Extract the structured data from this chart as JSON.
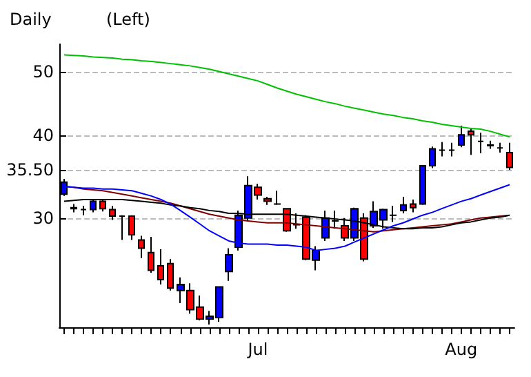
{
  "chart_data": {
    "type": "candlestick",
    "title": "Daily",
    "subtitle": "(Left)",
    "categories": [
      null,
      null,
      null,
      null,
      null,
      null,
      null,
      null,
      null,
      null,
      null,
      null,
      null,
      null,
      null,
      null,
      null,
      null,
      null,
      null,
      "Jul",
      null,
      null,
      null,
      null,
      null,
      null,
      null,
      null,
      null,
      null,
      null,
      null,
      null,
      null,
      null,
      null,
      null,
      null,
      null,
      null,
      "Aug",
      null,
      null,
      null,
      null,
      null
    ],
    "ohlc": [
      [
        32.6,
        34.4,
        32.4,
        34.0
      ],
      [
        31.0,
        31.5,
        30.6,
        31.1
      ],
      [
        30.9,
        31.3,
        30.3,
        30.9
      ],
      [
        30.9,
        32.0,
        30.6,
        31.8
      ],
      [
        31.8,
        32.0,
        30.7,
        31.0
      ],
      [
        30.9,
        31.3,
        29.8,
        30.2
      ],
      [
        30.2,
        30.3,
        27.8,
        30.2
      ],
      [
        30.2,
        30.3,
        27.8,
        28.3
      ],
      [
        27.8,
        28.2,
        26.1,
        27.0
      ],
      [
        26.6,
        28.1,
        24.8,
        25.0
      ],
      [
        25.4,
        26.9,
        23.8,
        24.2
      ],
      [
        25.6,
        26.0,
        23.3,
        23.5
      ],
      [
        23.3,
        24.4,
        22.3,
        23.8
      ],
      [
        23.3,
        23.9,
        21.5,
        21.8
      ],
      [
        22.0,
        22.9,
        21.0,
        21.1
      ],
      [
        21.1,
        21.7,
        20.7,
        21.3
      ],
      [
        21.2,
        23.6,
        20.9,
        23.6
      ],
      [
        24.9,
        27.0,
        24.1,
        26.4
      ],
      [
        27.1,
        30.8,
        26.8,
        30.3
      ],
      [
        30.0,
        34.7,
        29.7,
        33.6
      ],
      [
        33.4,
        33.8,
        32.0,
        32.5
      ],
      [
        32.1,
        32.3,
        31.4,
        31.8
      ],
      [
        31.5,
        33.0,
        31.4,
        31.5
      ],
      [
        31.0,
        31.0,
        28.6,
        28.7
      ],
      [
        29.3,
        30.5,
        28.9,
        29.3
      ],
      [
        30.1,
        30.3,
        25.9,
        26.0
      ],
      [
        25.9,
        27.2,
        25.0,
        26.8
      ],
      [
        28.0,
        30.8,
        27.7,
        30.0
      ],
      [
        29.7,
        30.8,
        28.9,
        29.7
      ],
      [
        29.2,
        30.0,
        27.7,
        28.0
      ],
      [
        28.0,
        31.1,
        27.7,
        31.0
      ],
      [
        30.0,
        30.5,
        25.8,
        26.0
      ],
      [
        29.2,
        31.8,
        29.0,
        30.7
      ],
      [
        29.8,
        31.0,
        28.9,
        30.9
      ],
      [
        30.3,
        31.3,
        29.6,
        30.3
      ],
      [
        30.8,
        32.3,
        30.5,
        31.4
      ],
      [
        31.5,
        32.0,
        30.6,
        31.1
      ],
      [
        31.5,
        36.0,
        31.4,
        36.0
      ],
      [
        36.0,
        38.5,
        35.7,
        38.2
      ],
      [
        38.0,
        39.1,
        37.2,
        38.0
      ],
      [
        38.0,
        39.0,
        37.2,
        38.0
      ],
      [
        38.7,
        41.4,
        38.4,
        40.1
      ],
      [
        40.6,
        41.1,
        37.4,
        40.1
      ],
      [
        39.2,
        40.4,
        37.6,
        39.2
      ],
      [
        38.6,
        39.3,
        38.2,
        38.7
      ],
      [
        38.3,
        39.0,
        37.7,
        38.3
      ],
      [
        37.7,
        39.0,
        35.5,
        35.8
      ]
    ],
    "colors": [
      "#0000ff",
      "#0000ff",
      "#000000",
      "#0000ff",
      "#ff0000",
      "#ff0000",
      "#000000",
      "#ff0000",
      "#ff0000",
      "#ff0000",
      "#ff0000",
      "#ff0000",
      "#0000ff",
      "#ff0000",
      "#ff0000",
      "#0000ff",
      "#0000ff",
      "#0000ff",
      "#0000ff",
      "#0000ff",
      "#ff0000",
      "#ff0000",
      "#000000",
      "#ff0000",
      "#000000",
      "#ff0000",
      "#0000ff",
      "#0000ff",
      "#000000",
      "#ff0000",
      "#0000ff",
      "#ff0000",
      "#0000ff",
      "#0000ff",
      "#000000",
      "#0000ff",
      "#ff0000",
      "#0000ff",
      "#0000ff",
      "#000000",
      "#000000",
      "#0000ff",
      "#ff0000",
      "#000000",
      "#0000ff",
      "#000000",
      "#ff0000"
    ],
    "series": [
      {
        "type": "line",
        "color": "#00c000",
        "values": [
          53.0,
          52.9,
          52.8,
          52.6,
          52.5,
          52.4,
          52.2,
          52.1,
          51.9,
          51.8,
          51.6,
          51.4,
          51.2,
          51.0,
          50.7,
          50.4,
          50.0,
          49.6,
          49.2,
          48.8,
          48.4,
          47.8,
          47.2,
          46.7,
          46.2,
          45.8,
          45.4,
          45.0,
          44.7,
          44.3,
          44.0,
          43.7,
          43.4,
          43.1,
          42.9,
          42.6,
          42.4,
          42.1,
          41.9,
          41.6,
          41.4,
          41.2,
          41.0,
          40.9,
          40.6,
          40.2,
          39.8
        ]
      },
      {
        "type": "line",
        "color": "#0000ff",
        "values": [
          33.5,
          33.4,
          33.3,
          33.3,
          33.2,
          33.2,
          33.1,
          33.0,
          32.7,
          32.4,
          32.0,
          31.5,
          30.8,
          30.1,
          29.4,
          28.7,
          28.2,
          27.7,
          27.5,
          27.4,
          27.4,
          27.4,
          27.3,
          27.3,
          27.2,
          27.1,
          26.8,
          26.9,
          27.0,
          27.2,
          27.6,
          28.0,
          28.4,
          28.8,
          29.2,
          29.5,
          29.9,
          30.3,
          30.6,
          31.0,
          31.4,
          31.8,
          32.1,
          32.5,
          32.9,
          33.3,
          33.7
        ]
      },
      {
        "type": "line",
        "color": "#000000",
        "values": [
          31.8,
          31.9,
          32.0,
          32.0,
          32.0,
          32.0,
          32.0,
          31.9,
          31.8,
          31.7,
          31.6,
          31.4,
          31.3,
          31.1,
          31.0,
          30.8,
          30.7,
          30.5,
          30.5,
          30.4,
          30.4,
          30.4,
          30.4,
          30.4,
          30.3,
          30.2,
          30.1,
          30.0,
          29.9,
          29.8,
          29.7,
          29.5,
          29.3,
          29.1,
          29.0,
          28.9,
          28.9,
          29.0,
          29.0,
          29.1,
          29.3,
          29.5,
          29.6,
          29.8,
          30.0,
          30.1,
          30.3
        ]
      },
      {
        "type": "line",
        "color": "#800000",
        "values": [
          33.5,
          33.4,
          33.2,
          33.1,
          33.0,
          32.8,
          32.6,
          32.4,
          32.2,
          32.0,
          31.8,
          31.6,
          31.3,
          31.0,
          30.7,
          30.4,
          30.2,
          30.0,
          29.8,
          29.7,
          29.6,
          29.5,
          29.5,
          29.5,
          29.4,
          29.3,
          29.2,
          29.1,
          29.0,
          28.9,
          28.8,
          28.7,
          28.6,
          28.7,
          28.8,
          28.9,
          29.0,
          29.1,
          29.2,
          29.3,
          29.4,
          29.6,
          29.8,
          30.0,
          30.1,
          30.2,
          30.3
        ]
      }
    ],
    "log": "y",
    "ylim": [
      20.5,
      55
    ],
    "yticks": [
      30,
      {
        "value": 35.5,
        "label": "35.50"
      },
      40,
      50
    ],
    "grid": "y",
    "marker": "none",
    "line_style": "solid"
  }
}
